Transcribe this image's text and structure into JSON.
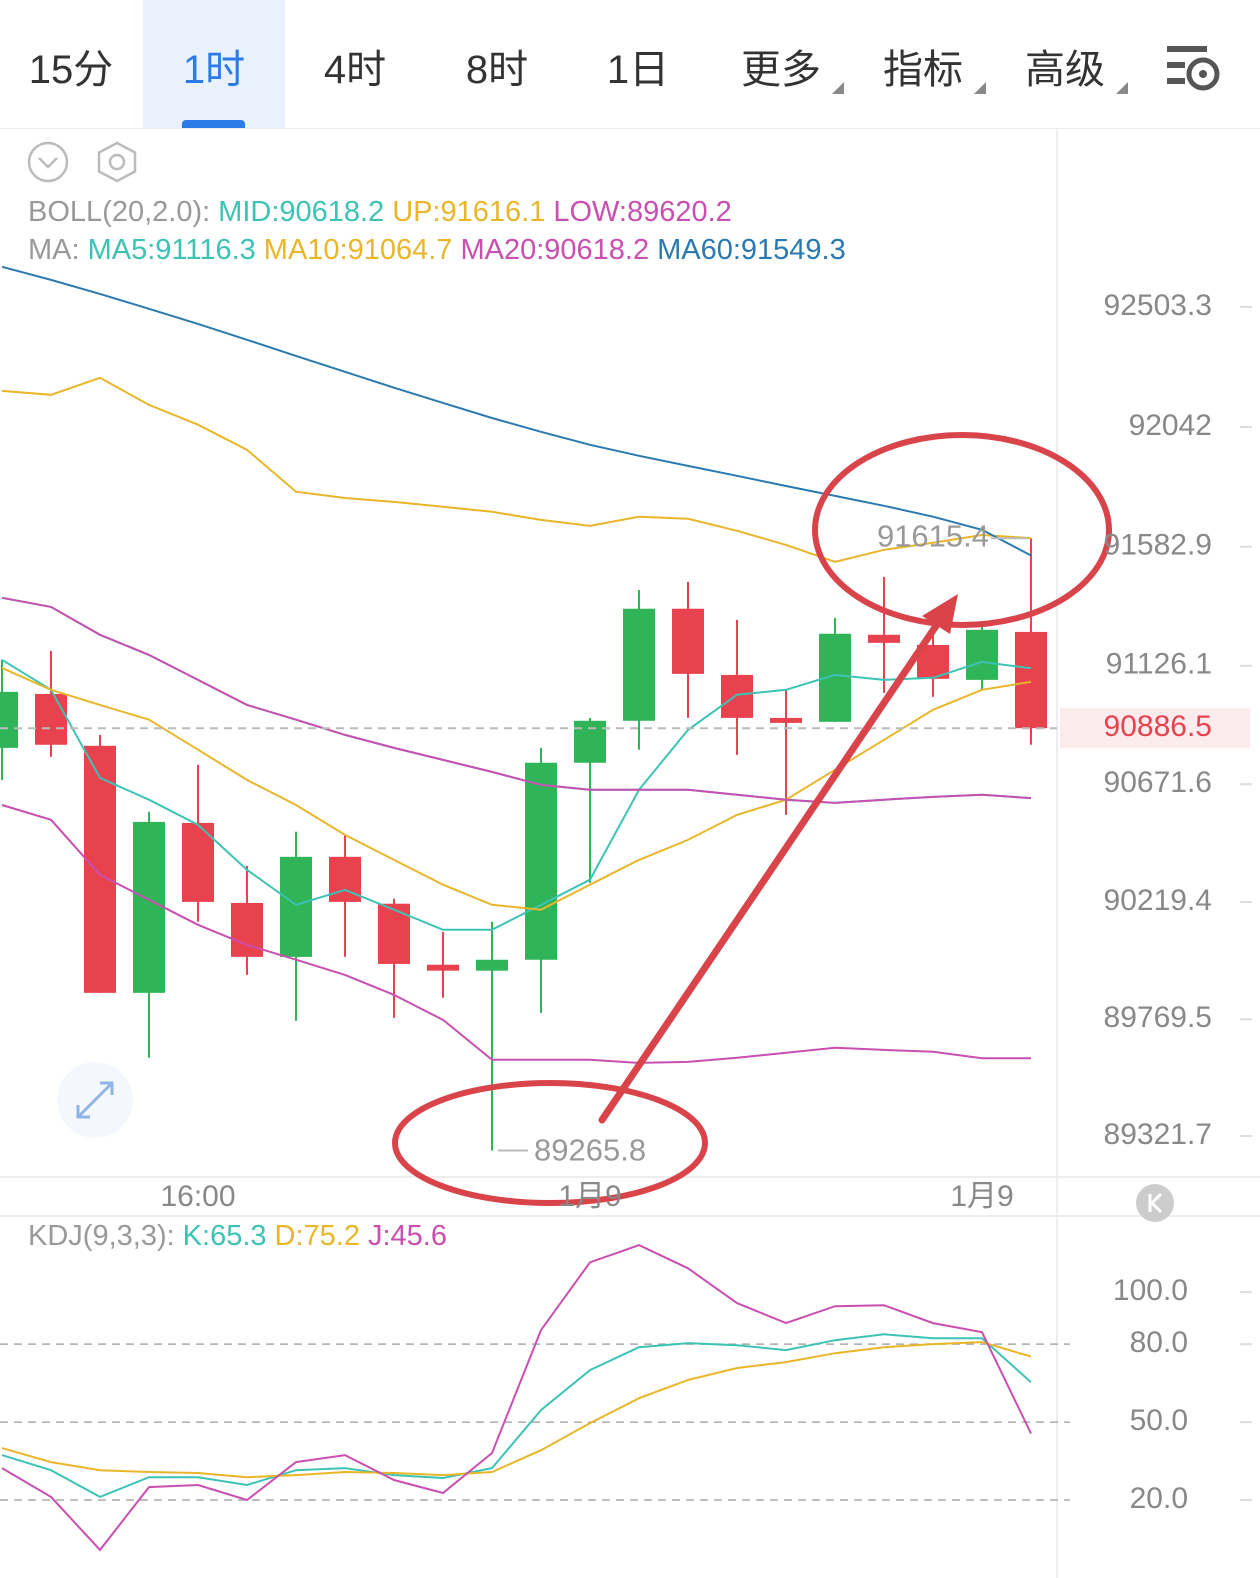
{
  "tabs": {
    "items": [
      "15分",
      "1时",
      "4时",
      "8时",
      "1日",
      "更多",
      "指标",
      "高级"
    ],
    "active": 1
  },
  "chart_data": [
    {
      "type": "candlestick",
      "categories": [
        null,
        null,
        null,
        null,
        "16:00",
        null,
        null,
        null,
        null,
        null,
        null,
        null,
        "1月9",
        null,
        null,
        null,
        null,
        null,
        null,
        null,
        "1月9",
        null
      ],
      "open": [
        90811,
        91018,
        90819,
        89871,
        90523,
        90216,
        90009,
        90393,
        90213,
        89979,
        89956,
        89998,
        90754,
        90915,
        91345,
        91091,
        90926,
        90911,
        91245,
        91206,
        91072,
        91256
      ],
      "high": [
        91149,
        91183,
        90861,
        90566,
        90746,
        90358,
        90489,
        90477,
        90232,
        90105,
        90144,
        90811,
        90926,
        91417,
        91448,
        91302,
        91034,
        91310,
        91467,
        91318,
        91279,
        91615.4
      ],
      "low": [
        90688,
        90777,
        89871,
        89622,
        90144,
        89940,
        89764,
        90009,
        89775,
        89852,
        89265.8,
        89794,
        90293,
        90804,
        90926,
        90784,
        90554,
        90911,
        91022,
        91007,
        91034,
        90823
      ],
      "close": [
        91026,
        90823,
        89871,
        90527,
        90220,
        90009,
        90393,
        90220,
        89982,
        89956,
        89998,
        90754,
        90915,
        91345,
        91095,
        90926,
        90911,
        91249,
        91214,
        91076,
        91264,
        90886.5
      ],
      "up_color": "#2fb457",
      "down_color": "#e9424f",
      "ylim": [
        89172,
        92664
      ],
      "yticks": [
        89321.7,
        89769.5,
        90219.4,
        90671.6,
        91126.1,
        91582.9,
        92042.0,
        92503.3
      ],
      "last_price": 90886.5,
      "boll": {
        "title": "BOLL(20,2.0):",
        "series": [
          {
            "name": "MID:90618.2",
            "color": "#3cc3b5",
            "values": [
              91387,
              91352,
              91245,
              91168,
              91072,
              90976,
              90919,
              90861,
              90811,
              90765,
              90719,
              90669,
              90650,
              90650,
              90650,
              90631,
              90612,
              90600,
              90612,
              90623,
              90631,
              90618.2
            ]
          },
          {
            "name": "UP:91616.1",
            "color": "#e9b62a",
            "values": [
              92181,
              92166,
              92231,
              92127,
              92051,
              91955,
              91794,
              91770,
              91755,
              91736,
              91717,
              91686,
              91663,
              91698,
              91690,
              91644,
              91590,
              91525,
              91571,
              91598,
              91628,
              91616.1
            ]
          },
          {
            "name": "LOW:89620.2",
            "color": "#c94fb0",
            "values": [
              90592,
              90535,
              90324,
              90228,
              90132,
              90055,
              89998,
              89940,
              89863,
              89767,
              89614,
              89614,
              89614,
              89602,
              89606,
              89622,
              89641,
              89660,
              89652,
              89645,
              89620,
              89620.2
            ]
          }
        ]
      },
      "ma": {
        "title": "MA:",
        "series": [
          {
            "name": "MA5:91116.3",
            "color": "#3cc3b5",
            "values": [
              91149,
              91034,
              90696,
              90612,
              90516,
              90343,
              90209,
              90266,
              90190,
              90113,
              90113,
              90209,
              90305,
              90650,
              90880,
              91015,
              91034,
              91091,
              91072,
              91080,
              91141,
              91116.3
            ]
          },
          {
            "name": "MA10:91064.7",
            "color": "#e9b62a",
            "values": [
              91118,
              91034,
              90976,
              90919,
              90804,
              90688,
              90592,
              90477,
              90381,
              90286,
              90209,
              90190,
              90286,
              90381,
              90458,
              90554,
              90612,
              90727,
              90842,
              90957,
              91034,
              91064.7
            ]
          },
          {
            "name": "MA20:90618.2",
            "color": "#c94fb0",
            "values": [
              91387,
              91352,
              91245,
              91168,
              91072,
              90976,
              90919,
              90861,
              90811,
              90765,
              90719,
              90669,
              90650,
              90650,
              90650,
              90631,
              90612,
              90600,
              90612,
              90623,
              90631,
              90618.2
            ]
          },
          {
            "name": "MA60:91549.3",
            "color": "#2a7ab0",
            "values": [
              92657,
              92607,
              92553,
              92496,
              92438,
              92377,
              92315,
              92254,
              92193,
              92135,
              92077,
              92024,
              91974,
              91932,
              91893,
              91855,
              91816,
              91778,
              91740,
              91698,
              91648,
              91549.3
            ]
          }
        ]
      }
    },
    {
      "type": "line",
      "title": "KDJ(9,3,3):",
      "series": [
        {
          "name": "K:65.3",
          "color": "#3cc3b5",
          "values": [
            37.3,
            31.5,
            21.2,
            28.8,
            28.8,
            25.8,
            31.5,
            32.3,
            29.6,
            28.5,
            32.3,
            54.6,
            70,
            78.8,
            80.4,
            79.6,
            77.7,
            81.5,
            83.8,
            82.3,
            82.3,
            65.3
          ]
        },
        {
          "name": "D:75.2",
          "color": "#e9b62a",
          "values": [
            40,
            34.6,
            31.5,
            30.8,
            30.4,
            28.8,
            29.6,
            30.8,
            30.4,
            29.6,
            30.8,
            39.2,
            49.6,
            59.2,
            66.2,
            70.8,
            73.1,
            76.5,
            78.8,
            80,
            80.8,
            75.2
          ]
        },
        {
          "name": "J:45.6",
          "color": "#c94fb0",
          "values": [
            32.3,
            21.2,
            0.8,
            25,
            25.8,
            20,
            34.6,
            37.3,
            27.7,
            22.7,
            38.1,
            85.4,
            111.5,
            118.1,
            109.2,
            95.8,
            88.1,
            94.6,
            95,
            88.1,
            84.6,
            45.6
          ]
        }
      ],
      "ylim": [
        -10,
        127
      ],
      "yticks": [
        {
          "value": 20,
          "label": "20.0"
        },
        {
          "value": 50,
          "label": "50.0"
        },
        {
          "value": 80,
          "label": "80.0"
        },
        {
          "value": 100,
          "label": "100.0"
        }
      ],
      "ref_lines": [
        20,
        50,
        80
      ]
    }
  ]
}
